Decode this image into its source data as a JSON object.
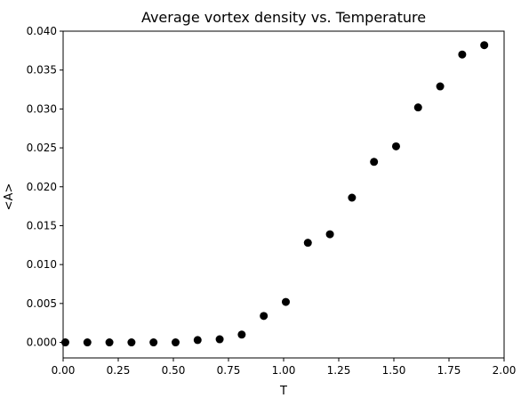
{
  "chart_data": {
    "type": "scatter",
    "title": "Average vortex density vs. Temperature",
    "xlabel": "T",
    "ylabel": "<A>",
    "xlim": [
      0.0,
      2.0
    ],
    "ylim": [
      -0.002,
      0.04
    ],
    "x_ticks": [
      0.0,
      0.25,
      0.5,
      0.75,
      1.0,
      1.25,
      1.5,
      1.75,
      2.0
    ],
    "x_tick_labels": [
      "0.00",
      "0.25",
      "0.50",
      "0.75",
      "1.00",
      "1.25",
      "1.50",
      "1.75",
      "2.00"
    ],
    "y_ticks": [
      0.0,
      0.005,
      0.01,
      0.015,
      0.02,
      0.025,
      0.03,
      0.035,
      0.04
    ],
    "y_tick_labels": [
      "0.000",
      "0.005",
      "0.010",
      "0.015",
      "0.020",
      "0.025",
      "0.030",
      "0.035",
      "0.040"
    ],
    "grid": false,
    "marker_color": "#000000",
    "series": [
      {
        "x": [
          0.01,
          0.11,
          0.21,
          0.31,
          0.41,
          0.51,
          0.61,
          0.71,
          0.81,
          0.91,
          1.01,
          1.11,
          1.21,
          1.31,
          1.41,
          1.51,
          1.61,
          1.71,
          1.81,
          1.91
        ],
        "y": [
          0.0,
          0.0,
          0.0,
          0.0,
          0.0,
          0.0,
          0.0003,
          0.0004,
          0.001,
          0.0034,
          0.0052,
          0.0128,
          0.0139,
          0.0186,
          0.0232,
          0.0252,
          0.0302,
          0.0329,
          0.037,
          0.0382
        ]
      }
    ]
  }
}
